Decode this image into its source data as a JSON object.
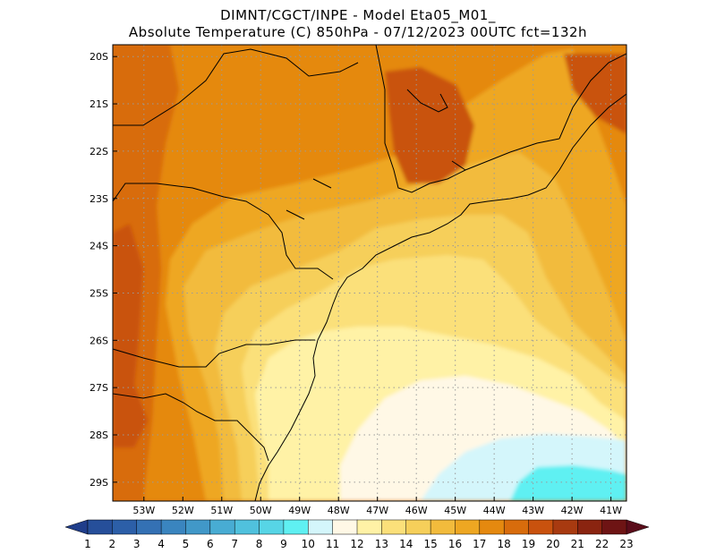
{
  "header": {
    "line1": "DIMNT/CGCT/INPE -  Model Eta05_M01_",
    "line2": "Absolute Temperature (C) 850hPa -  07/12/2023 00UTC fct=132h"
  },
  "map": {
    "lat_range": [
      -29.4,
      -19.75
    ],
    "lon_range": [
      -53.8,
      -40.6
    ],
    "lat_ticks": [
      {
        "value": -20,
        "label": "20S"
      },
      {
        "value": -21,
        "label": "21S"
      },
      {
        "value": -22,
        "label": "22S"
      },
      {
        "value": -23,
        "label": "23S"
      },
      {
        "value": -24,
        "label": "24S"
      },
      {
        "value": -25,
        "label": "25S"
      },
      {
        "value": -26,
        "label": "26S"
      },
      {
        "value": -27,
        "label": "27S"
      },
      {
        "value": -28,
        "label": "28S"
      },
      {
        "value": -29,
        "label": "29S"
      }
    ],
    "lon_ticks": [
      {
        "value": -53,
        "label": "53W"
      },
      {
        "value": -52,
        "label": "52W"
      },
      {
        "value": -51,
        "label": "51W"
      },
      {
        "value": -50,
        "label": "50W"
      },
      {
        "value": -49,
        "label": "49W"
      },
      {
        "value": -48,
        "label": "48W"
      },
      {
        "value": -47,
        "label": "47W"
      },
      {
        "value": -46,
        "label": "46W"
      },
      {
        "value": -45,
        "label": "45W"
      },
      {
        "value": -44,
        "label": "44W"
      },
      {
        "value": -43,
        "label": "43W"
      },
      {
        "value": -42,
        "label": "42W"
      },
      {
        "value": -41,
        "label": "41W"
      }
    ],
    "grid": "dotted"
  },
  "colorbar": {
    "labels": [
      "1",
      "2",
      "3",
      "4",
      "5",
      "6",
      "7",
      "8",
      "9",
      "10",
      "11",
      "12",
      "13",
      "14",
      "15",
      "16",
      "17",
      "18",
      "19",
      "20",
      "21",
      "22",
      "23"
    ],
    "colors": [
      "#1f3d8a",
      "#264f9a",
      "#2c5fa8",
      "#3471b4",
      "#3a85bf",
      "#4198c8",
      "#48acd3",
      "#50c1dd",
      "#57d5e6",
      "#5ff0f2",
      "#d4f6fb",
      "#fff8e6",
      "#fff2a6",
      "#fbe07a",
      "#f6cf5a",
      "#f2bb3c",
      "#eea722",
      "#e5890f",
      "#d86c0c",
      "#c9520e",
      "#a83a10",
      "#8a2410",
      "#6e1414",
      "#5a0c1a"
    ]
  },
  "regions": [
    {
      "level": 18,
      "color": "#e5890f"
    },
    {
      "level": 17,
      "color": "#eea722"
    },
    {
      "level": 16,
      "color": "#f2bb3c"
    },
    {
      "level": 15,
      "color": "#f6cf5a"
    },
    {
      "level": 14,
      "color": "#fbe07a"
    },
    {
      "level": 13,
      "color": "#fff2a6"
    },
    {
      "level": 12,
      "color": "#fff8e6"
    },
    {
      "level": 11,
      "color": "#d4f6fb"
    },
    {
      "level": 10,
      "color": "#5ff0f2"
    },
    {
      "level": 19,
      "color": "#d86c0c"
    },
    {
      "level": 20,
      "color": "#c9520e"
    }
  ]
}
